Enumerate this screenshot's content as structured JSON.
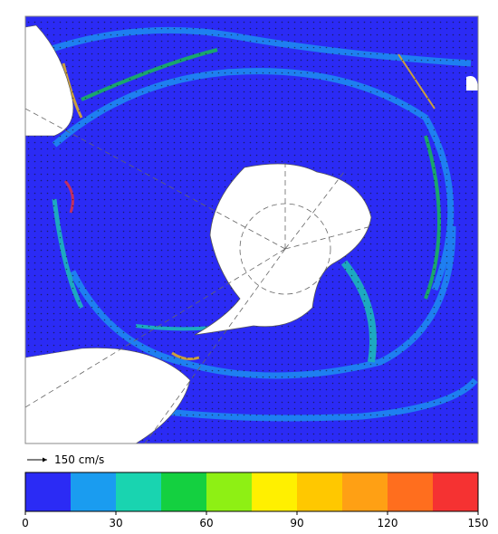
{
  "legend": {
    "reference_arrow_label": "150 cm/s",
    "colors": [
      "#2b2bf5",
      "#1a9cf0",
      "#19d4b0",
      "#14d040",
      "#8ef014",
      "#fff000",
      "#ffc800",
      "#ffa014",
      "#ff6e1e",
      "#f53232"
    ],
    "range": [
      0,
      150
    ],
    "ticks": [
      0,
      30,
      60,
      90,
      120,
      150
    ]
  }
}
